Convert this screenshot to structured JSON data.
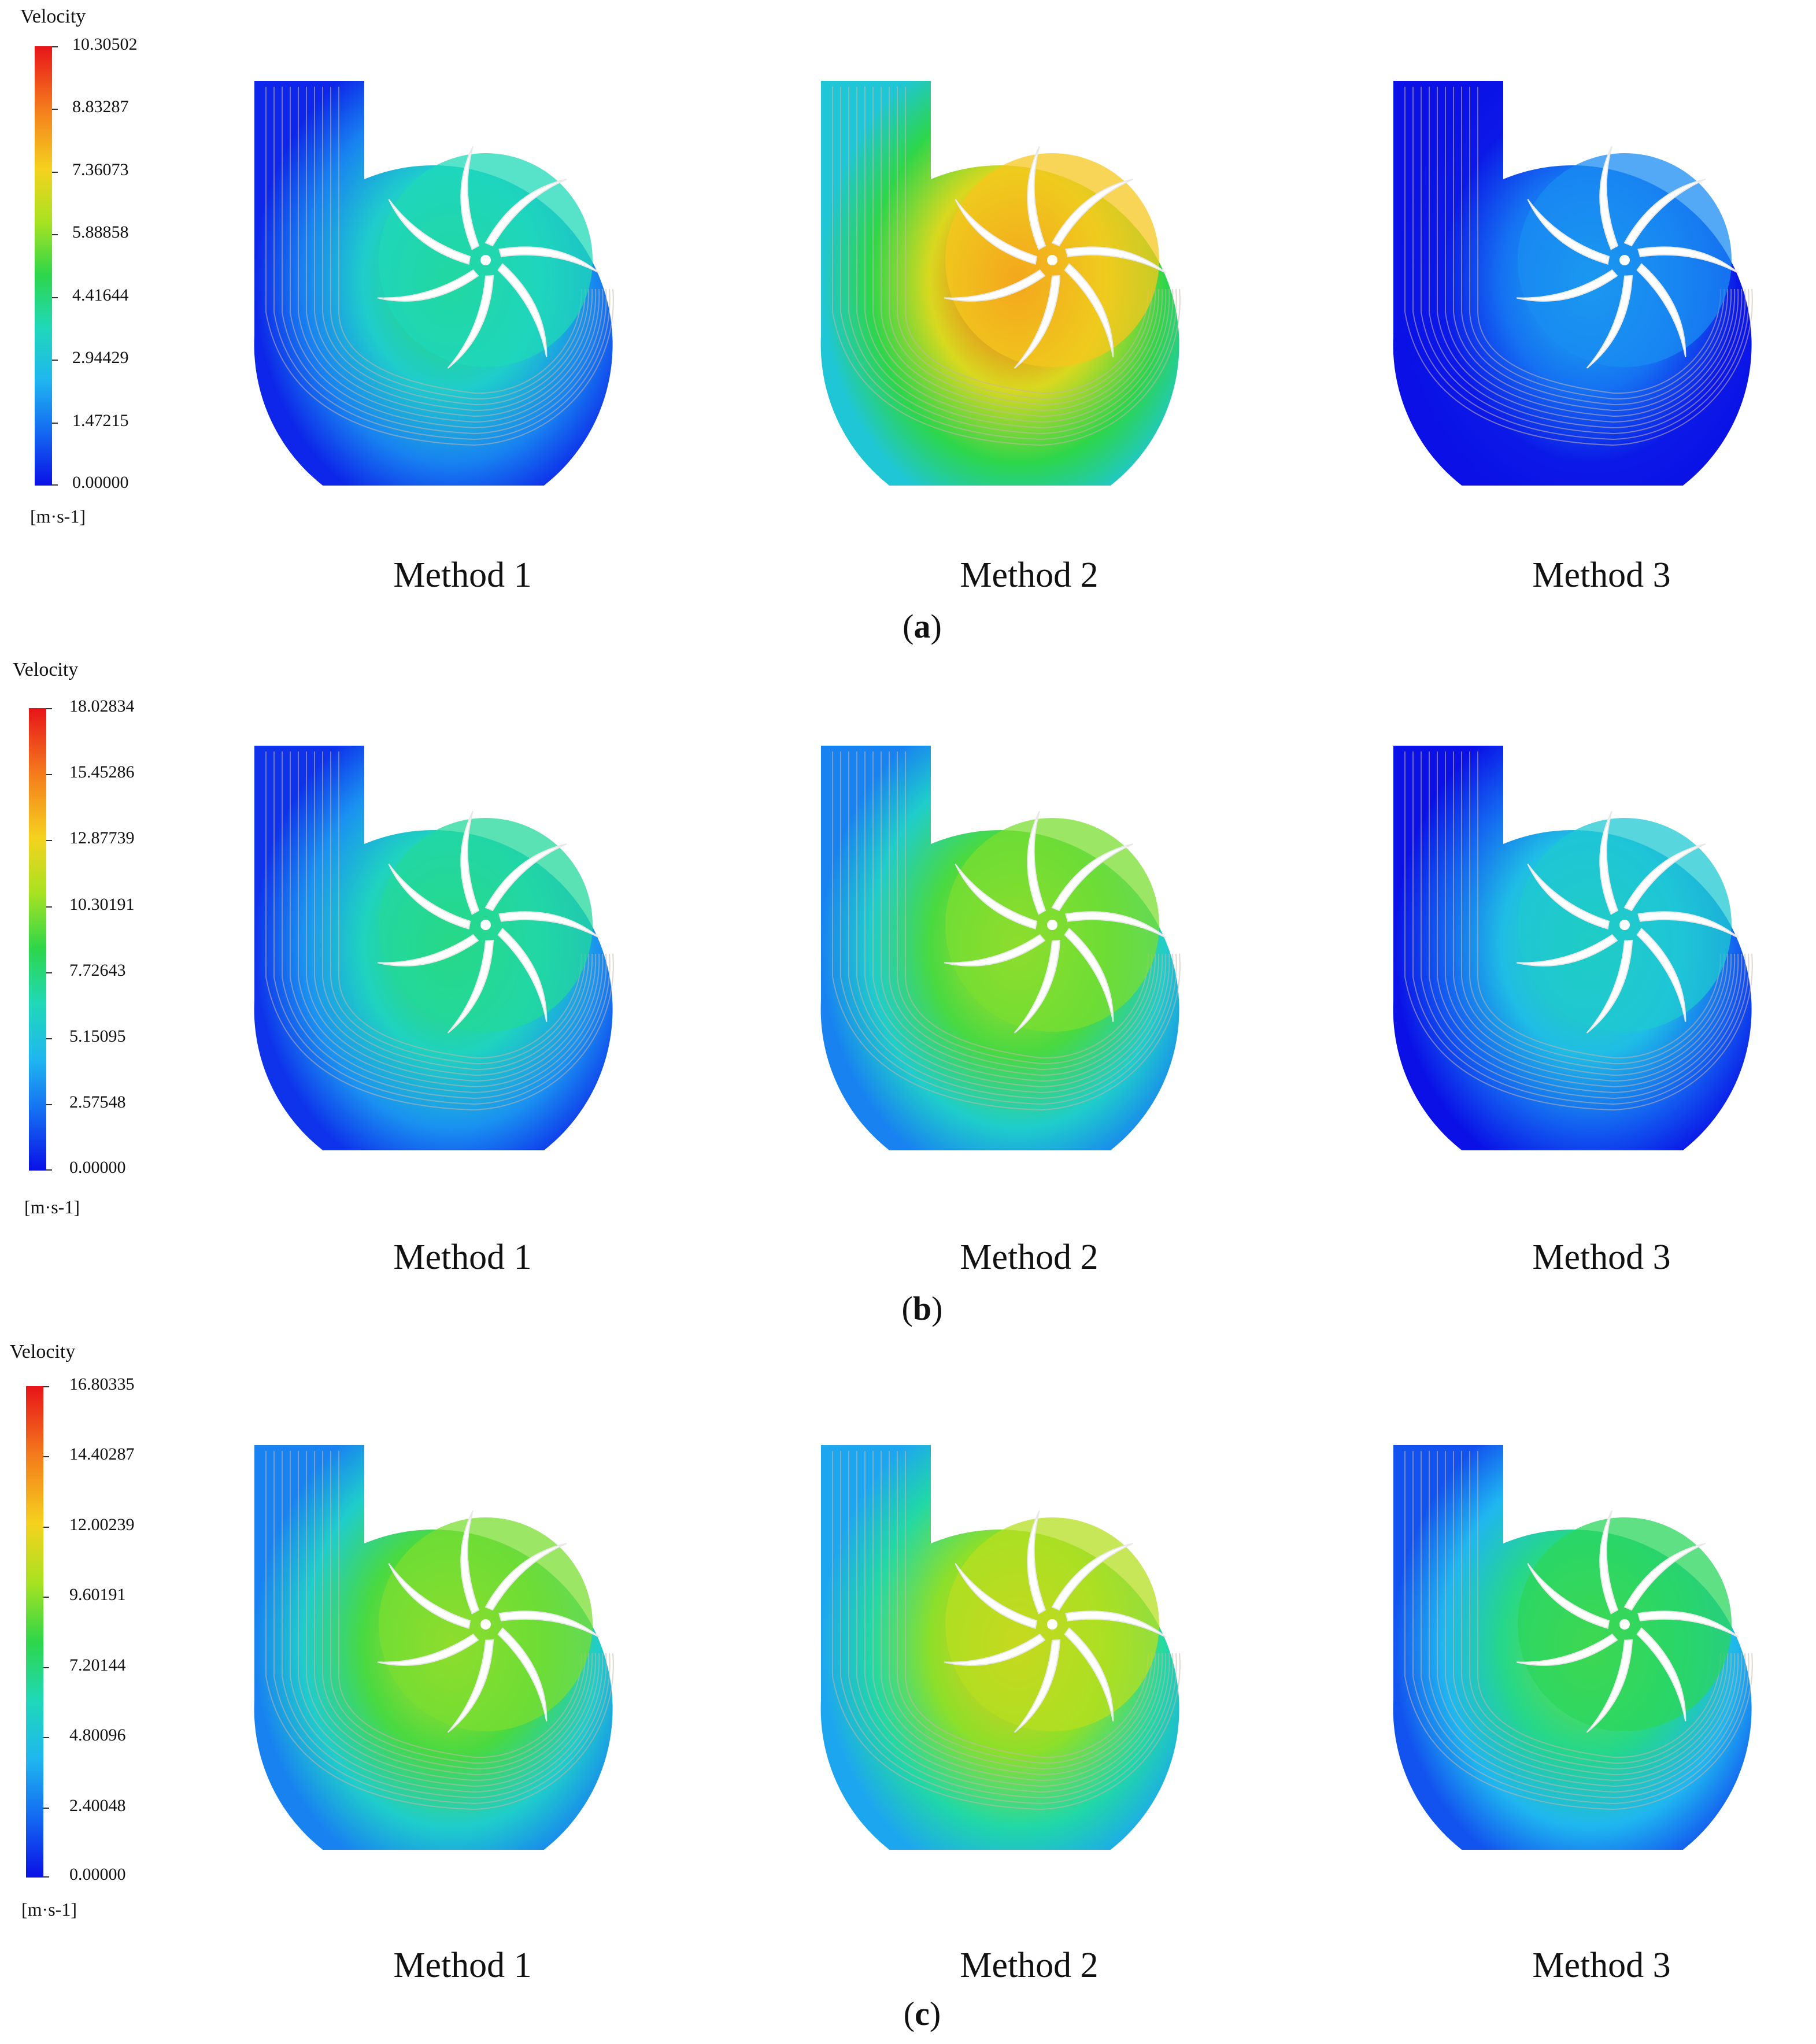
{
  "panels": [
    {
      "id": "a",
      "legend": {
        "title": "Velocity",
        "ticks": [
          "10.30502",
          "8.83287",
          "7.36073",
          "5.88858",
          "4.41644",
          "2.94429",
          "1.47215",
          "0.00000"
        ],
        "unit": "[m·s-1]"
      },
      "methods": [
        "Method 1",
        "Method 2",
        "Method 3"
      ],
      "label": "a",
      "intensity": [
        0.35,
        0.72,
        0.12
      ]
    },
    {
      "id": "b",
      "legend": {
        "title": "Velocity",
        "ticks": [
          "18.02834",
          "15.45286",
          "12.87739",
          "10.30191",
          "7.72643",
          "5.15095",
          "2.57548",
          "0.00000"
        ],
        "unit": "[m·s-1]"
      },
      "methods": [
        "Method 1",
        "Method 2",
        "Method 3"
      ],
      "label": "b",
      "intensity": [
        0.38,
        0.55,
        0.28
      ]
    },
    {
      "id": "c",
      "legend": {
        "title": "Velocity",
        "ticks": [
          "16.80335",
          "14.40287",
          "12.00239",
          "9.60191",
          "7.20144",
          "4.80096",
          "2.40048",
          "0.00000"
        ],
        "unit": "[m·s-1]"
      },
      "methods": [
        "Method 1",
        "Method 2",
        "Method 3"
      ],
      "label": "c",
      "intensity": [
        0.55,
        0.62,
        0.45
      ]
    }
  ],
  "colors": {
    "low": "#0a10e6",
    "mid": "#1fd8b8",
    "high": "#e8141a"
  }
}
